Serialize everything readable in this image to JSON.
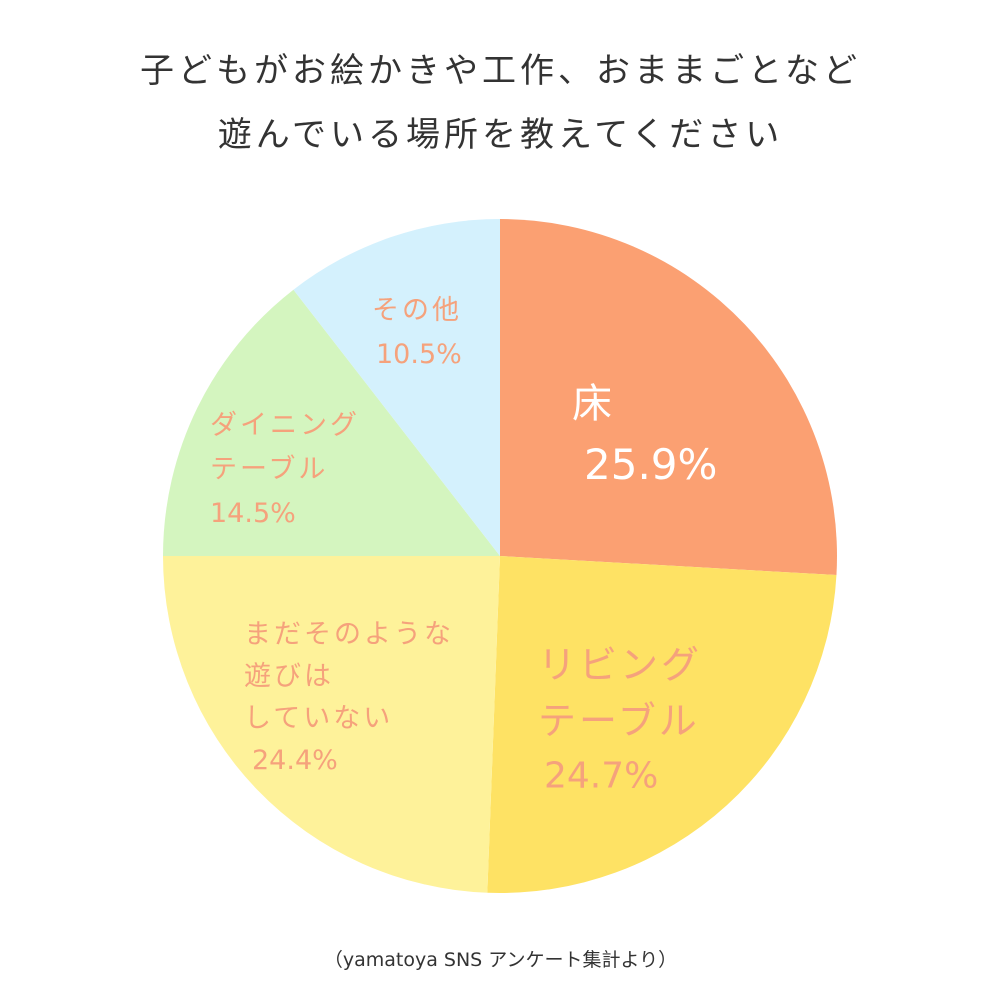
{
  "title_lines": [
    "子どもがお絵かきや工作、おままごとなど",
    "遊んでいる場所を教えてください"
  ],
  "source": "（yamatoya SNS アンケート集計より）",
  "chart_data": {
    "type": "pie",
    "start": "12 o'clock, clockwise",
    "slices": [
      {
        "label_lines": [
          "床"
        ],
        "value": 25.9,
        "value_text": "25.9%",
        "color": "#FBA072",
        "text_color": "#FFFFFF"
      },
      {
        "label_lines": [
          "リビング",
          "テーブル"
        ],
        "value": 24.7,
        "value_text": "24.7%",
        "color": "#FEE264",
        "text_color": "#F5A27C"
      },
      {
        "label_lines": [
          "まだそのような",
          "遊びは",
          "していない"
        ],
        "value": 24.4,
        "value_text": "24.4%",
        "color": "#FEF29A",
        "text_color": "#F5A27C"
      },
      {
        "label_lines": [
          "ダイニング",
          "テーブル"
        ],
        "value": 14.5,
        "value_text": "14.5%",
        "color": "#D4F5BF",
        "text_color": "#F5A27C"
      },
      {
        "label_lines": [
          "その他"
        ],
        "value": 10.5,
        "value_text": "10.5%",
        "color": "#D4F1FD",
        "text_color": "#F5A27C"
      }
    ]
  }
}
